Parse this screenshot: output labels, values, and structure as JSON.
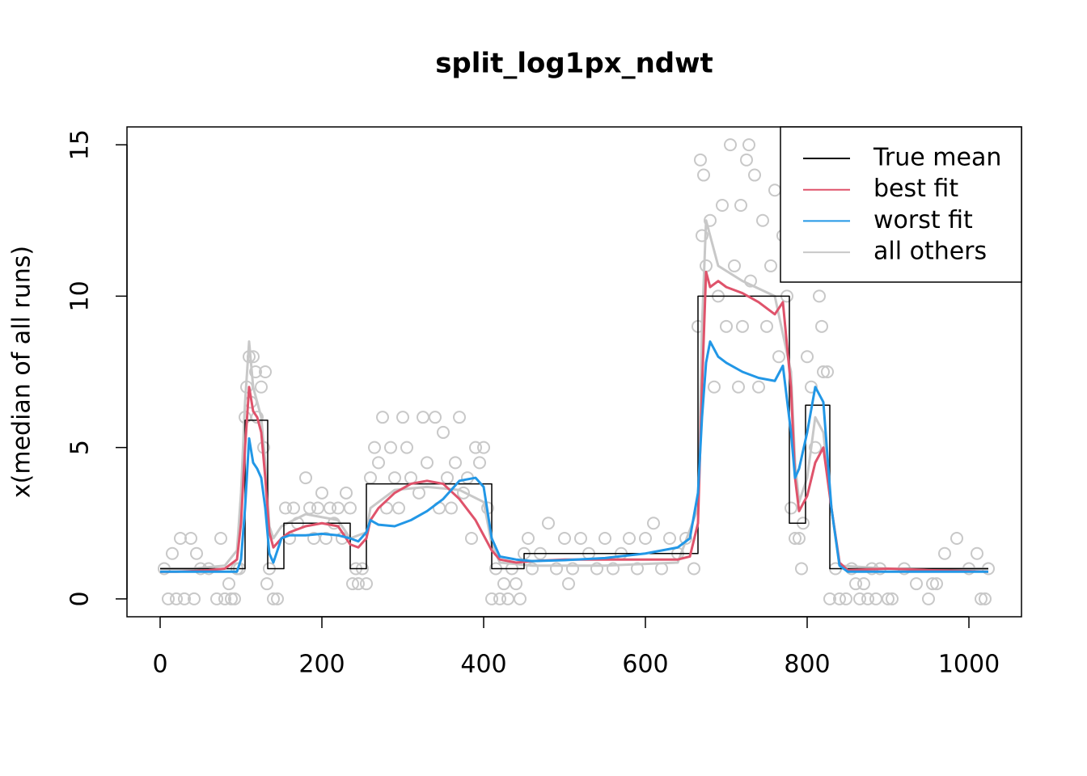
{
  "chart_data": {
    "type": "line",
    "title": "split_log1px_ndwt",
    "ylabel": "x(median of all runs)",
    "xlim": [
      -41,
      1065
    ],
    "ylim": [
      -0.59,
      15.59
    ],
    "xticks": [
      0,
      200,
      400,
      600,
      800,
      1000
    ],
    "yticks": [
      0,
      5,
      10,
      15
    ],
    "legend": "topright",
    "points": {
      "color": "#c8c8c8",
      "x": [
        5,
        10,
        15,
        20,
        25,
        30,
        38,
        42,
        45,
        50,
        60,
        70,
        75,
        80,
        85,
        88,
        92,
        95,
        98,
        105,
        107,
        110,
        112,
        115,
        118,
        120,
        125,
        128,
        130,
        132,
        135,
        140,
        145,
        155,
        160,
        165,
        170,
        180,
        185,
        190,
        195,
        200,
        205,
        210,
        215,
        220,
        225,
        230,
        235,
        238,
        242,
        245,
        250,
        255,
        260,
        265,
        270,
        275,
        280,
        285,
        290,
        295,
        300,
        305,
        310,
        320,
        325,
        330,
        340,
        345,
        350,
        355,
        360,
        365,
        370,
        375,
        380,
        385,
        390,
        395,
        400,
        405,
        410,
        415,
        420,
        425,
        430,
        435,
        440,
        445,
        450,
        455,
        460,
        470,
        480,
        490,
        500,
        505,
        510,
        520,
        530,
        540,
        550,
        560,
        570,
        580,
        590,
        600,
        610,
        620,
        630,
        640,
        650,
        660,
        665,
        668,
        670,
        672,
        675,
        680,
        685,
        690,
        695,
        700,
        705,
        710,
        715,
        718,
        720,
        725,
        728,
        730,
        735,
        740,
        745,
        750,
        755,
        760,
        765,
        770,
        775,
        780,
        785,
        790,
        793,
        795,
        800,
        805,
        810,
        815,
        818,
        820,
        825,
        828,
        835,
        840,
        848,
        855,
        860,
        865,
        870,
        875,
        880,
        885,
        890,
        900,
        905,
        920,
        935,
        950,
        955,
        960,
        970,
        985,
        1000,
        1010,
        1015,
        1020,
        1024
      ],
      "y": [
        1,
        0,
        1.5,
        0,
        2,
        0,
        2,
        0,
        1.5,
        1,
        1,
        0,
        2,
        0,
        0.5,
        0,
        0,
        1,
        1,
        6,
        7,
        8,
        6.5,
        8,
        7.5,
        6,
        7,
        5,
        7.5,
        0.5,
        1,
        0,
        0,
        3,
        2,
        3,
        2.5,
        4,
        3,
        2,
        3,
        3.5,
        2,
        3,
        2.5,
        3,
        2,
        3.5,
        3,
        0.5,
        1,
        0.5,
        1,
        0.5,
        4,
        5,
        4.5,
        6,
        3,
        5,
        4,
        3,
        6,
        5,
        4,
        3.5,
        6,
        4.5,
        6,
        3,
        5.5,
        4,
        3,
        4.5,
        6,
        3.5,
        4,
        2,
        5,
        4.5,
        5,
        3,
        0,
        1,
        0,
        0.5,
        0,
        1,
        0.5,
        0,
        1.5,
        2,
        1,
        1.5,
        2.5,
        1,
        2,
        0.5,
        1,
        2,
        1.5,
        1,
        2,
        1,
        1.5,
        2,
        1,
        2,
        2.5,
        1,
        2,
        1.5,
        2,
        1,
        9,
        14.5,
        12,
        14,
        11,
        12.5,
        7,
        10,
        13,
        9,
        15,
        11,
        7,
        13,
        9,
        14.5,
        15,
        10.5,
        14,
        7,
        12.5,
        9,
        11,
        13.5,
        8,
        12,
        10,
        3,
        2,
        2,
        1,
        2.5,
        8,
        7,
        5,
        10,
        9,
        7.5,
        7.5,
        0,
        1,
        0,
        0,
        1,
        0.5,
        0,
        0.5,
        0,
        1,
        0,
        1,
        0,
        0,
        1,
        0.5,
        0,
        0.5,
        0.5,
        1.5,
        2,
        1,
        1.5,
        0,
        0,
        1
      ]
    },
    "series": [
      {
        "name": "all others",
        "color": "#c8c8c8",
        "x": [
          0,
          40,
          80,
          95,
          100,
          105,
          110,
          115,
          120,
          125,
          130,
          135,
          140,
          150,
          180,
          220,
          235,
          255,
          260,
          290,
          330,
          370,
          400,
          410,
          420,
          460,
          550,
          640,
          665,
          670,
          675,
          690,
          720,
          760,
          780,
          785,
          790,
          800,
          810,
          820,
          830,
          840,
          900,
          1024
        ],
        "values": [
          1,
          1,
          1.1,
          1.6,
          3.5,
          6.5,
          8.5,
          7,
          6.5,
          6,
          4.5,
          2.4,
          2,
          2.4,
          2.8,
          2.6,
          2,
          2.2,
          3,
          3.6,
          3.7,
          3.6,
          3.2,
          1.8,
          1.2,
          1.1,
          1.1,
          1.2,
          3,
          9,
          12.5,
          11,
          10.5,
          10,
          7.5,
          4.5,
          3.2,
          4,
          6,
          5.5,
          3,
          1.1,
          1,
          1
        ]
      },
      {
        "name": "True mean",
        "color": "#000000",
        "x": [
          0,
          105,
          105,
          133,
          133,
          153,
          153,
          235,
          235,
          255,
          255,
          410,
          410,
          450,
          450,
          665,
          665,
          778,
          778,
          798,
          798,
          828,
          828,
          1024
        ],
        "values": [
          1,
          1,
          5.9,
          5.9,
          1,
          1,
          2.5,
          2.5,
          1,
          1,
          3.8,
          3.8,
          1,
          1,
          1.5,
          1.5,
          10,
          10,
          2.5,
          2.5,
          6.4,
          6.4,
          1,
          1
        ]
      },
      {
        "name": "best fit",
        "color": "#df536b",
        "x": [
          0,
          20,
          40,
          60,
          80,
          95,
          100,
          105,
          110,
          115,
          120,
          125,
          130,
          135,
          140,
          150,
          160,
          180,
          200,
          220,
          235,
          245,
          255,
          260,
          270,
          290,
          310,
          330,
          350,
          370,
          390,
          400,
          410,
          420,
          440,
          460,
          500,
          550,
          600,
          640,
          655,
          665,
          670,
          675,
          680,
          690,
          700,
          720,
          740,
          760,
          770,
          780,
          785,
          790,
          800,
          810,
          820,
          830,
          840,
          850,
          900,
          950,
          1000,
          1024
        ],
        "values": [
          0.9,
          0.9,
          0.92,
          0.95,
          1,
          1.3,
          2.5,
          5,
          7,
          6.2,
          6,
          5.5,
          4,
          2.2,
          1.7,
          2,
          2.2,
          2.4,
          2.5,
          2.4,
          1.8,
          1.7,
          2,
          2.6,
          3,
          3.5,
          3.8,
          3.9,
          3.8,
          3.3,
          2.6,
          2.1,
          1.6,
          1.3,
          1.2,
          1.25,
          1.3,
          1.3,
          1.3,
          1.3,
          1.4,
          2.5,
          7,
          10.8,
          10.3,
          10.5,
          10.3,
          10.1,
          9.8,
          9.4,
          9.8,
          7,
          4,
          2.9,
          3.4,
          4.5,
          5,
          3,
          1.2,
          0.95,
          1,
          0.95,
          0.92,
          0.9
        ]
      },
      {
        "name": "worst fit",
        "color": "#2297e6",
        "x": [
          0,
          20,
          40,
          60,
          80,
          95,
          100,
          105,
          110,
          115,
          120,
          125,
          130,
          135,
          140,
          150,
          160,
          180,
          200,
          220,
          235,
          245,
          255,
          260,
          270,
          290,
          310,
          330,
          350,
          370,
          390,
          400,
          410,
          420,
          440,
          460,
          500,
          550,
          600,
          640,
          655,
          665,
          670,
          675,
          680,
          690,
          700,
          720,
          740,
          760,
          770,
          780,
          785,
          790,
          800,
          810,
          820,
          830,
          840,
          850,
          900,
          950,
          1000,
          1024
        ],
        "values": [
          0.9,
          0.9,
          0.9,
          0.9,
          0.9,
          0.9,
          1.3,
          3,
          5.3,
          4.5,
          4.3,
          4,
          3,
          1.5,
          1.2,
          2,
          2.1,
          2.1,
          2.15,
          2.1,
          2,
          1.9,
          2.2,
          2.6,
          2.45,
          2.4,
          2.6,
          2.9,
          3.3,
          3.9,
          4,
          3.7,
          2,
          1.4,
          1.3,
          1.25,
          1.28,
          1.35,
          1.5,
          1.7,
          2,
          3.5,
          6,
          7.8,
          8.5,
          8,
          7.8,
          7.5,
          7.3,
          7.2,
          7.7,
          5.5,
          4,
          4.3,
          5.5,
          7,
          6.5,
          3,
          1.1,
          0.9,
          0.9,
          0.9,
          0.9,
          0.9
        ]
      }
    ]
  }
}
